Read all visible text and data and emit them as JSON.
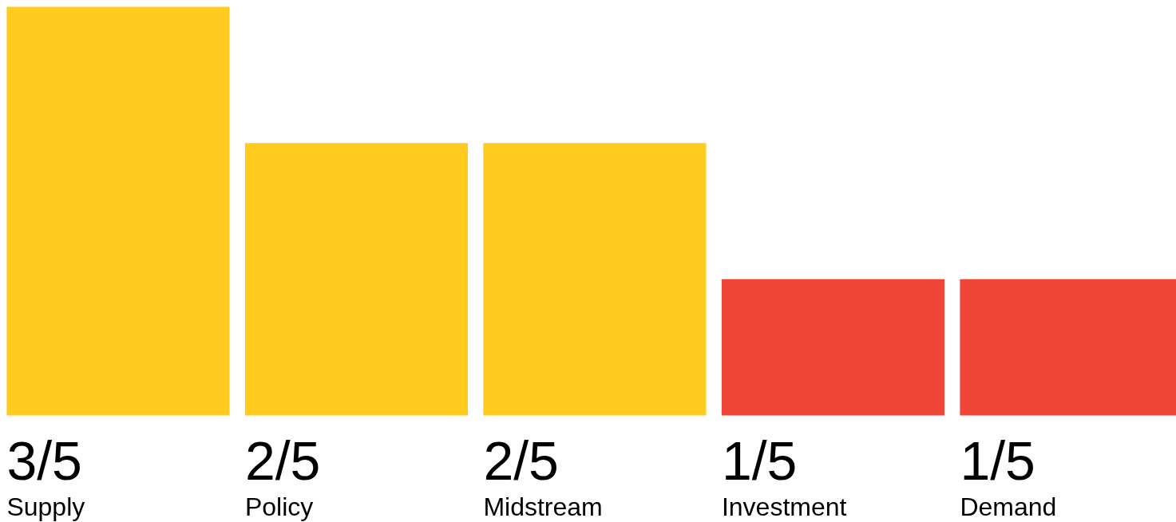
{
  "chart_data": {
    "type": "bar",
    "categories": [
      "Supply",
      "Policy",
      "Midstream",
      "Investment",
      "Demand"
    ],
    "values": [
      0.6,
      0.4,
      0.4,
      0.2,
      0.2
    ],
    "value_labels": [
      "3/5",
      "2/5",
      "2/5",
      "1/5",
      "1/5"
    ],
    "colors": [
      "#fecb1e",
      "#fecb1e",
      "#fecb1e",
      "#ee4537",
      "#ee4537"
    ],
    "tick_labels": false
  }
}
